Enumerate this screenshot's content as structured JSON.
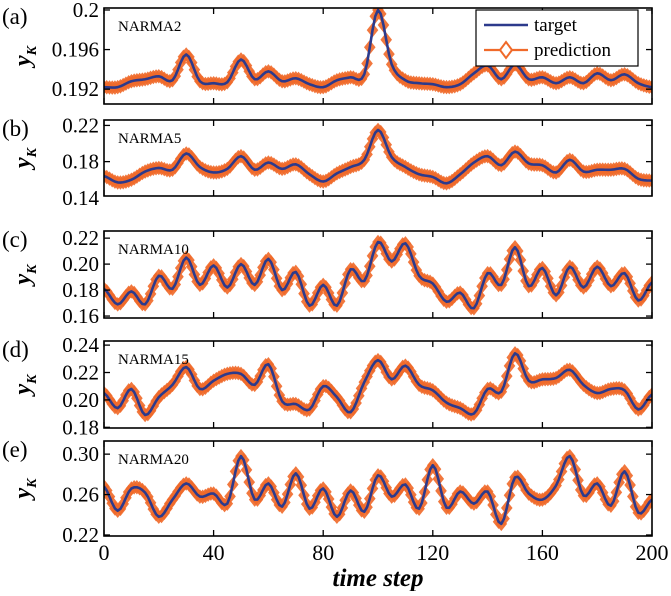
{
  "chart_data": [
    {
      "type": "line",
      "panel_label": "(a)",
      "title": "NARMA2",
      "ylabel_main": "y",
      "ylabel_sub": "K",
      "ylim": [
        0.1905,
        0.2002
      ],
      "yticks": [
        0.192,
        0.196,
        0.2
      ],
      "ytick_labels": [
        "0.192",
        "0.196",
        "0.2"
      ],
      "anchors_x": [
        0,
        5,
        10,
        15,
        20,
        25,
        30,
        35,
        40,
        45,
        50,
        55,
        60,
        65,
        70,
        75,
        80,
        85,
        90,
        95,
        100,
        105,
        110,
        115,
        120,
        125,
        130,
        135,
        140,
        145,
        150,
        155,
        160,
        165,
        170,
        175,
        180,
        185,
        190,
        195,
        200
      ],
      "anchors_y": [
        0.1922,
        0.1922,
        0.1928,
        0.193,
        0.1933,
        0.1929,
        0.1955,
        0.1928,
        0.1926,
        0.1927,
        0.195,
        0.193,
        0.1938,
        0.1928,
        0.1931,
        0.1925,
        0.1922,
        0.1929,
        0.1932,
        0.1935,
        0.2,
        0.1945,
        0.1929,
        0.1926,
        0.1925,
        0.1922,
        0.1925,
        0.1936,
        0.1944,
        0.193,
        0.1945,
        0.193,
        0.1932,
        0.1926,
        0.1932,
        0.1926,
        0.1936,
        0.1929,
        0.1935,
        0.1926,
        0.1922
      ]
    },
    {
      "type": "line",
      "panel_label": "(b)",
      "title": "NARMA5",
      "ylabel_main": "y",
      "ylabel_sub": "K",
      "ylim": [
        0.142,
        0.226
      ],
      "yticks": [
        0.14,
        0.18,
        0.22
      ],
      "ytick_labels": [
        "0.14",
        "0.18",
        "0.22"
      ],
      "anchors_x": [
        0,
        5,
        10,
        15,
        20,
        25,
        30,
        35,
        40,
        45,
        50,
        55,
        60,
        65,
        70,
        75,
        80,
        85,
        90,
        95,
        100,
        105,
        110,
        115,
        120,
        125,
        130,
        135,
        140,
        145,
        150,
        155,
        160,
        165,
        170,
        175,
        180,
        185,
        190,
        195,
        200
      ],
      "anchors_y": [
        0.164,
        0.157,
        0.16,
        0.169,
        0.173,
        0.171,
        0.189,
        0.174,
        0.168,
        0.172,
        0.186,
        0.171,
        0.179,
        0.172,
        0.177,
        0.166,
        0.158,
        0.167,
        0.174,
        0.182,
        0.215,
        0.185,
        0.174,
        0.166,
        0.163,
        0.156,
        0.166,
        0.179,
        0.186,
        0.176,
        0.191,
        0.178,
        0.176,
        0.168,
        0.182,
        0.169,
        0.171,
        0.171,
        0.172,
        0.161,
        0.159
      ]
    },
    {
      "type": "line",
      "panel_label": "(c)",
      "title": "NARMA10",
      "ylabel_main": "y",
      "ylabel_sub": "K",
      "ylim": [
        0.1585,
        0.2255
      ],
      "yticks": [
        0.16,
        0.18,
        0.2,
        0.22
      ],
      "ytick_labels": [
        "0.16",
        "0.18",
        "0.20",
        "0.22"
      ],
      "anchors_x": [
        0,
        5,
        10,
        15,
        20,
        25,
        30,
        35,
        40,
        45,
        50,
        55,
        60,
        65,
        70,
        75,
        80,
        85,
        90,
        95,
        100,
        105,
        110,
        115,
        120,
        125,
        130,
        135,
        140,
        145,
        150,
        155,
        160,
        165,
        170,
        175,
        180,
        185,
        190,
        195,
        200
      ],
      "anchors_y": [
        0.181,
        0.169,
        0.179,
        0.169,
        0.191,
        0.181,
        0.205,
        0.184,
        0.199,
        0.182,
        0.2,
        0.184,
        0.204,
        0.18,
        0.194,
        0.168,
        0.184,
        0.168,
        0.196,
        0.187,
        0.217,
        0.202,
        0.216,
        0.191,
        0.185,
        0.171,
        0.178,
        0.166,
        0.193,
        0.184,
        0.213,
        0.183,
        0.197,
        0.176,
        0.198,
        0.182,
        0.198,
        0.183,
        0.193,
        0.172,
        0.186
      ]
    },
    {
      "type": "line",
      "panel_label": "(d)",
      "title": "NARMA15",
      "ylabel_main": "y",
      "ylabel_sub": "K",
      "ylim": [
        0.1795,
        0.243
      ],
      "yticks": [
        0.18,
        0.2,
        0.22,
        0.24
      ],
      "ytick_labels": [
        "0.18",
        "0.20",
        "0.22",
        "0.24"
      ],
      "anchors_x": [
        0,
        5,
        10,
        15,
        20,
        25,
        30,
        35,
        40,
        45,
        50,
        55,
        60,
        65,
        70,
        75,
        80,
        85,
        90,
        95,
        100,
        105,
        110,
        115,
        120,
        125,
        130,
        135,
        140,
        145,
        150,
        155,
        160,
        165,
        170,
        175,
        180,
        185,
        190,
        195,
        200
      ],
      "anchors_y": [
        0.205,
        0.194,
        0.208,
        0.189,
        0.202,
        0.211,
        0.224,
        0.208,
        0.214,
        0.219,
        0.219,
        0.211,
        0.226,
        0.199,
        0.197,
        0.193,
        0.21,
        0.202,
        0.191,
        0.213,
        0.229,
        0.215,
        0.225,
        0.211,
        0.207,
        0.198,
        0.194,
        0.19,
        0.208,
        0.206,
        0.234,
        0.214,
        0.215,
        0.216,
        0.222,
        0.211,
        0.205,
        0.208,
        0.207,
        0.193,
        0.204
      ]
    },
    {
      "type": "line",
      "panel_label": "(e)",
      "title": "NARMA20",
      "ylabel_main": "y",
      "ylabel_sub": "K",
      "ylim": [
        0.219,
        0.313
      ],
      "yticks": [
        0.22,
        0.26,
        0.3
      ],
      "ytick_labels": [
        "0.22",
        "0.26",
        "0.30"
      ],
      "anchors_x": [
        0,
        5,
        10,
        15,
        20,
        25,
        30,
        35,
        40,
        45,
        50,
        55,
        60,
        65,
        70,
        75,
        80,
        85,
        90,
        95,
        100,
        105,
        110,
        115,
        120,
        125,
        130,
        135,
        140,
        145,
        150,
        155,
        160,
        165,
        170,
        175,
        180,
        185,
        190,
        195,
        200
      ],
      "anchors_y": [
        0.268,
        0.244,
        0.266,
        0.262,
        0.238,
        0.255,
        0.271,
        0.258,
        0.261,
        0.251,
        0.298,
        0.255,
        0.271,
        0.248,
        0.281,
        0.246,
        0.266,
        0.238,
        0.264,
        0.243,
        0.279,
        0.258,
        0.27,
        0.246,
        0.289,
        0.247,
        0.263,
        0.251,
        0.263,
        0.231,
        0.277,
        0.261,
        0.255,
        0.269,
        0.298,
        0.259,
        0.271,
        0.249,
        0.283,
        0.242,
        0.255
      ]
    }
  ],
  "xaxis": {
    "xlabel": "time step",
    "xlim": [
      0,
      200
    ],
    "xticks": [
      0,
      40,
      80,
      120,
      160,
      200
    ],
    "xtick_labels": [
      "0",
      "40",
      "80",
      "120",
      "160",
      "200"
    ]
  },
  "legend": {
    "placement": "top-right of panel (a)",
    "target_label": "target",
    "prediction_label": "prediction"
  },
  "colors": {
    "target": "#2c3a8c",
    "prediction": "#f06a2a",
    "axes": "#000000"
  }
}
